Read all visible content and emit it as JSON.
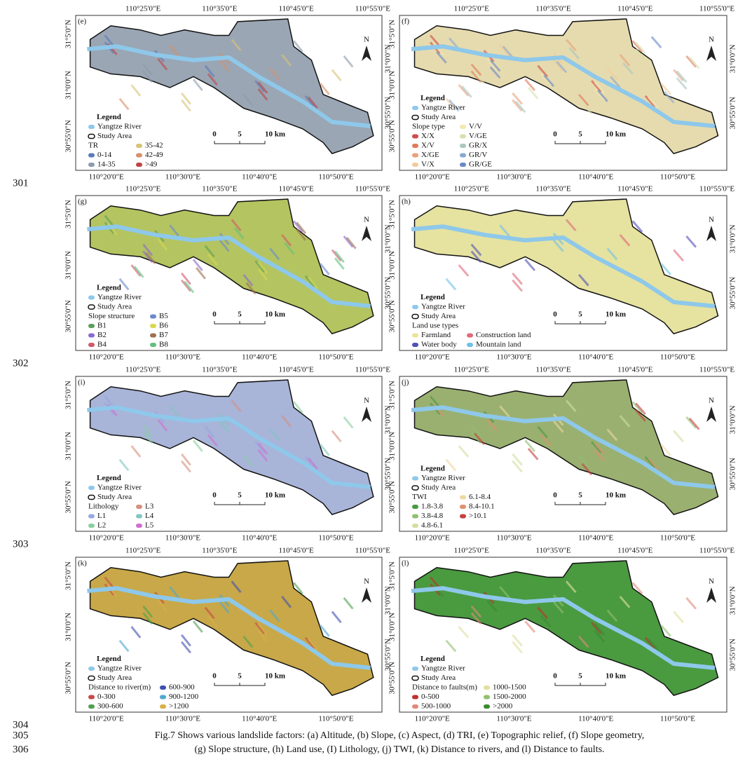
{
  "axes": {
    "top_lon": [
      "110°25'0\"E",
      "110°35'0\"E",
      "110°45'0\"E",
      "110°55'0\"E"
    ],
    "bottom_lon": [
      "110°20'0\"E",
      "110°30'0\"E",
      "110°40'0\"E",
      "110°50'0\"E"
    ],
    "left_lat": [
      "31°5'0\"N",
      "31°0'0\"N",
      "30°55'0\"N"
    ],
    "right_lat": [
      "31°0'0\"N",
      "30°55'0\"N"
    ]
  },
  "legend_common": {
    "title": "Legend",
    "river": "Yangtze River",
    "study_area": "Study Area"
  },
  "scale": {
    "zero": "0",
    "mid": "5",
    "end": "10 km"
  },
  "north": "N",
  "panels": [
    {
      "label": "(e)",
      "base": "#9aa6b4",
      "factor": "TR",
      "col2_with_title": true,
      "col1": [
        {
          "label": "0-14",
          "color": "#5a7ab8"
        },
        {
          "label": "14-35",
          "color": "#8c9cac"
        }
      ],
      "col2": [
        {
          "label": "35-42",
          "color": "#d8c478"
        },
        {
          "label": "42-49",
          "color": "#d8906a"
        },
        {
          "label": ">49",
          "color": "#c04545"
        }
      ]
    },
    {
      "label": "(f)",
      "base": "#e6dbae",
      "factor": "Slope type",
      "col2_with_title": true,
      "col1": [
        {
          "label": "X/X",
          "color": "#d24a4a"
        },
        {
          "label": "X/V",
          "color": "#e07a5a"
        },
        {
          "label": "X/GE",
          "color": "#eaa07a"
        },
        {
          "label": "V/X",
          "color": "#f0cc9a"
        }
      ],
      "col2": [
        {
          "label": "V/V",
          "color": "#f2e8b0"
        },
        {
          "label": "V/GE",
          "color": "#d8e0b0"
        },
        {
          "label": "GR/X",
          "color": "#a8c8c0"
        },
        {
          "label": "GR/V",
          "color": "#88a8d0"
        },
        {
          "label": "GR/GE",
          "color": "#6a88c8"
        }
      ]
    },
    {
      "label": "(g)",
      "base": "#b4c460",
      "factor": "Slope structure",
      "col2_with_title": true,
      "col1": [
        {
          "label": "B1",
          "color": "#5aa05a"
        },
        {
          "label": "B2",
          "color": "#8a6ad0"
        },
        {
          "label": "B4",
          "color": "#d05a6a"
        }
      ],
      "col2": [
        {
          "label": "B5",
          "color": "#6a8ad0"
        },
        {
          "label": "B6",
          "color": "#d8d850"
        },
        {
          "label": "B7",
          "color": "#a07050"
        },
        {
          "label": "B8",
          "color": "#60c080"
        }
      ]
    },
    {
      "label": "(h)",
      "base": "#e6e2a0",
      "factor": "Land use types",
      "col2_with_title": false,
      "col1": [
        {
          "label": "Farmland",
          "color": "#e8e49a"
        },
        {
          "label": "Water body",
          "color": "#5050b8"
        }
      ],
      "col2": [
        {
          "label": "Construction land",
          "color": "#e06a7a"
        },
        {
          "label": "Mountain land",
          "color": "#70c0e8"
        }
      ]
    },
    {
      "label": "(i)",
      "base": "#a8b4d8",
      "factor": "Lithology",
      "col2_with_title": true,
      "col1": [
        {
          "label": "L1",
          "color": "#98a8e0"
        },
        {
          "label": "L2",
          "color": "#8ad0a0"
        }
      ],
      "col2": [
        {
          "label": "L3",
          "color": "#d89080"
        },
        {
          "label": "L4",
          "color": "#80c8c0"
        },
        {
          "label": "L5",
          "color": "#d070d0"
        }
      ]
    },
    {
      "label": "(j)",
      "base": "#9ab070",
      "factor": "TWI",
      "col2_with_title": true,
      "col1": [
        {
          "label": "1.8-3.8",
          "color": "#4a9a40"
        },
        {
          "label": "3.8-4.8",
          "color": "#90c070"
        },
        {
          "label": "4.8-6.1",
          "color": "#d0e0a0"
        }
      ],
      "col2": [
        {
          "label": "6.1-8.4",
          "color": "#f0d8a0"
        },
        {
          "label": "8.4-10.1",
          "color": "#e09070"
        },
        {
          "label": ">10.1",
          "color": "#c84040"
        }
      ]
    },
    {
      "label": "(k)",
      "base": "#c8a848",
      "factor": "Distance to river(m)",
      "col2_with_title": true,
      "col1": [
        {
          "label": "0-300",
          "color": "#c84a4a"
        },
        {
          "label": "300-600",
          "color": "#50a050"
        }
      ],
      "col2": [
        {
          "label": "600-900",
          "color": "#4050b0"
        },
        {
          "label": "900-1200",
          "color": "#50a8d0"
        },
        {
          "label": ">1200",
          "color": "#d8b048"
        }
      ]
    },
    {
      "label": "(l)",
      "base": "#4a9a40",
      "factor": "Distance to faults(m)",
      "col2_with_title": true,
      "col1": [
        {
          "label": "0-500",
          "color": "#c03030"
        },
        {
          "label": "500-1000",
          "color": "#e08a7a"
        }
      ],
      "col2": [
        {
          "label": "1000-1500",
          "color": "#e0e0a0"
        },
        {
          "label": "1500-2000",
          "color": "#90c070"
        },
        {
          "label": ">2000",
          "color": "#3a8a30"
        }
      ]
    }
  ],
  "line_numbers": [
    "301",
    "302",
    "303",
    "304",
    "305",
    "306"
  ],
  "caption": [
    "Fig.7 Shows various landslide factors: (a) Altitude, (b) Slope, (c) Aspect, (d) TRI, (e) Topographic relief, (f) Slope geometry,",
    "(g) Slope structure, (h) Land use, (I) Lithology, (j) TWI, (k) Distance to rivers, and (l) Distance to faults."
  ]
}
